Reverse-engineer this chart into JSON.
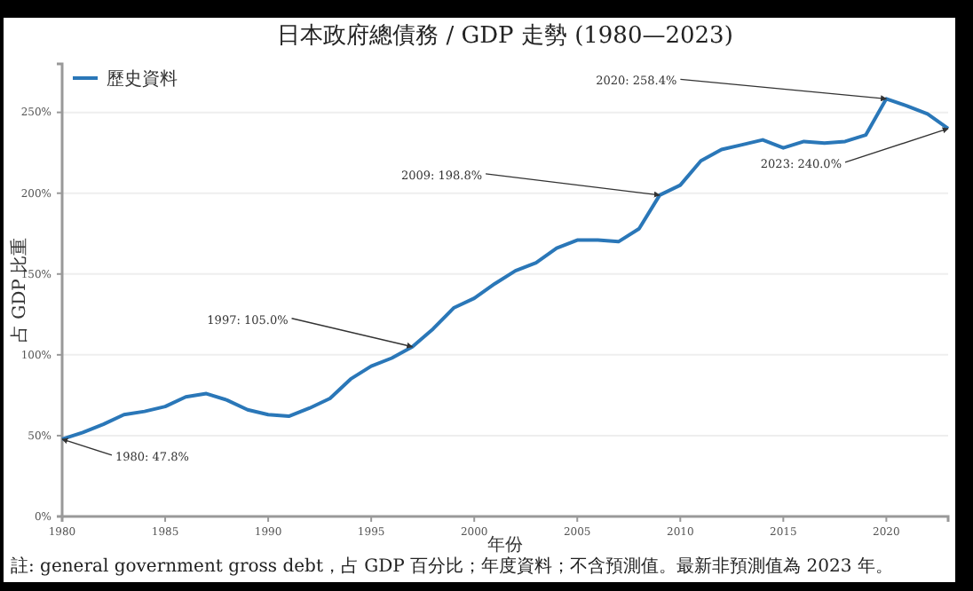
{
  "chart_data": {
    "type": "line",
    "title": "日本政府總債務 / GDP 走勢 (1980—2023)",
    "xlabel": "年份",
    "ylabel": "占 GDP 比重",
    "x": [
      1980,
      1981,
      1982,
      1983,
      1984,
      1985,
      1986,
      1987,
      1988,
      1989,
      1990,
      1991,
      1992,
      1993,
      1994,
      1995,
      1996,
      1997,
      1998,
      1999,
      2000,
      2001,
      2002,
      2003,
      2004,
      2005,
      2006,
      2007,
      2008,
      2009,
      2010,
      2011,
      2012,
      2013,
      2014,
      2015,
      2016,
      2017,
      2018,
      2019,
      2020,
      2021,
      2022,
      2023
    ],
    "series": [
      {
        "name": "歷史資料",
        "color": "#2a77b8",
        "values": [
          47.8,
          52,
          57,
          63,
          65,
          68,
          74,
          76,
          72,
          66,
          63,
          62,
          67,
          73,
          85,
          93,
          98,
          105.0,
          116,
          129,
          135,
          144,
          152,
          157,
          166,
          171,
          171,
          170,
          178,
          198.8,
          205,
          220,
          227,
          230,
          233,
          228,
          232,
          231,
          232,
          236,
          258.4,
          254,
          249,
          240.0
        ]
      }
    ],
    "xlim": [
      1980,
      2023
    ],
    "xticks": [
      1980,
      1985,
      1990,
      1995,
      2000,
      2005,
      2010,
      2015,
      2020
    ],
    "ylim": [
      0,
      280
    ],
    "yticks": [
      {
        "value": 0,
        "label": "0%"
      },
      {
        "value": 50,
        "label": "50%"
      },
      {
        "value": 100,
        "label": "100%"
      },
      {
        "value": 150,
        "label": "150%"
      },
      {
        "value": 200,
        "label": "200%"
      },
      {
        "value": 250,
        "label": "250%"
      }
    ],
    "grid": "y",
    "legend": "top left",
    "line_style": "solid",
    "marker": "none",
    "annotations": [
      {
        "text": "1980: 47.8%",
        "x": 1980,
        "y": 47.8
      },
      {
        "text": "1997: 105.0%",
        "x": 1997,
        "y": 105.0
      },
      {
        "text": "2009: 198.8%",
        "x": 2009,
        "y": 198.8
      },
      {
        "text": "2020: 258.4%",
        "x": 2020,
        "y": 258.4
      },
      {
        "text": "2023: 240.0%",
        "x": 2023,
        "y": 240.0
      },
      "註: general government gross debt，占 GDP 百分比；年度資料；不含預測值。最新非預測值為 2023 年。"
    ]
  }
}
